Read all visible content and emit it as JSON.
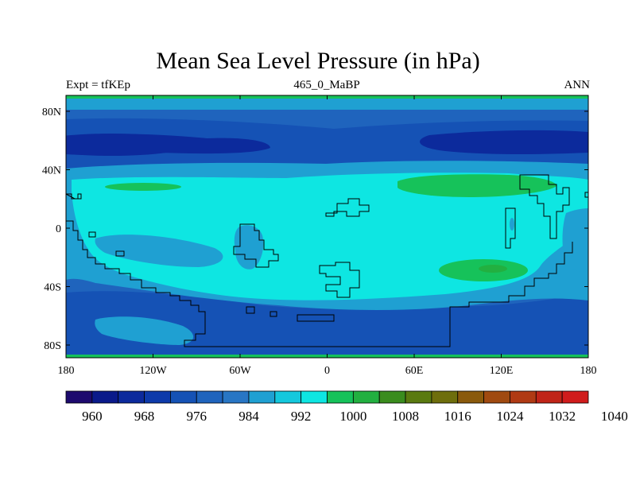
{
  "title": "Mean Sea Level Pressure (in hPa)",
  "subtitle_left": "Expt = tfKEp",
  "subtitle_center": "465_0_MaBP",
  "subtitle_right": "ANN",
  "x_ticks": [
    "180",
    "120W",
    "60W",
    "0",
    "60E",
    "120E",
    "180"
  ],
  "y_ticks": [
    "80N",
    "40N",
    "0",
    "40S",
    "80S"
  ],
  "colorbar": {
    "colors": [
      "#1d0a6e",
      "#0a1a8a",
      "#0c2a9c",
      "#0d3aaa",
      "#1552b5",
      "#1f64bd",
      "#2876c4",
      "#1fa0d2",
      "#14c8dd",
      "#0ee6e2",
      "#16c25a",
      "#22b040",
      "#3a8c1e",
      "#5a7a10",
      "#6e6e0c",
      "#8a5a0c",
      "#a04a10",
      "#b03a14",
      "#c02418",
      "#d01c1c"
    ],
    "labels": [
      "960",
      "968",
      "976",
      "984",
      "992",
      "1000",
      "1008",
      "1016",
      "1024",
      "1032",
      "1040"
    ]
  },
  "regions": {
    "outer_band": "#1f64bd",
    "high_lat_band": "#1552b5",
    "low_cores": "#0c2a9c",
    "subtropical_band": "#1fa0d2",
    "tropical_band": "#0ee6e2",
    "high_cells": "#16c25a",
    "high_cells_core": "#22b040",
    "coastline": "#000000"
  }
}
